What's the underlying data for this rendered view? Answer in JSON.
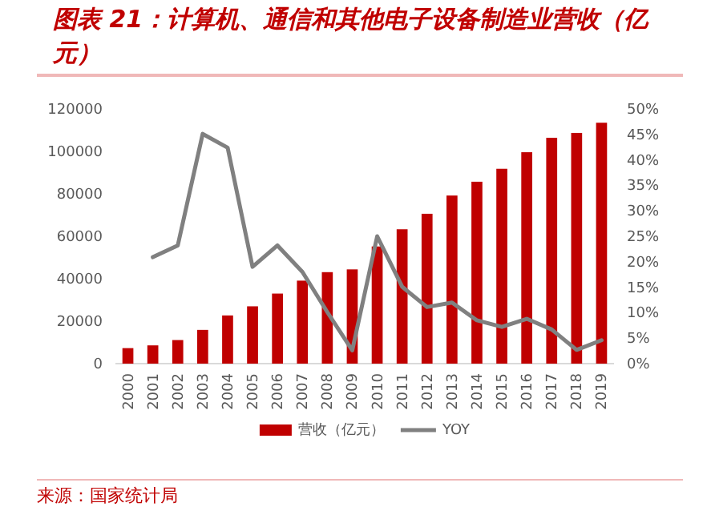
{
  "chart_data": {
    "type": "bar",
    "title": "图表 21：计算机、通信和其他电子设备制造业营收（亿元）",
    "categories": [
      "2000",
      "2001",
      "2002",
      "2003",
      "2004",
      "2005",
      "2006",
      "2007",
      "2008",
      "2009",
      "2010",
      "2011",
      "2012",
      "2013",
      "2014",
      "2015",
      "2016",
      "2017",
      "2018",
      "2019"
    ],
    "series": [
      {
        "name": "营收（亿元）",
        "color": "#c00000",
        "values": [
          7300,
          8600,
          11100,
          15900,
          22700,
          27000,
          33000,
          39100,
          43100,
          44400,
          55200,
          63300,
          70600,
          79200,
          85700,
          91800,
          99600,
          106400,
          108700,
          113500
        ]
      },
      {
        "name": "YOY",
        "type": "line",
        "axis": "y2",
        "color": "#808080",
        "values": [
          null,
          20.9,
          23.2,
          45.1,
          42.4,
          19.0,
          23.2,
          18.0,
          10.1,
          2.6,
          25.0,
          15.1,
          11.1,
          12.0,
          8.5,
          7.2,
          8.8,
          6.7,
          2.7,
          4.6
        ]
      }
    ],
    "ylim": [
      0,
      120000
    ],
    "yticks": [
      0,
      20000,
      40000,
      60000,
      80000,
      100000,
      120000
    ],
    "y2lim": [
      0,
      50
    ],
    "y2ticks": [
      {
        "value": 0,
        "label": "0%"
      },
      {
        "value": 5,
        "label": "5%"
      },
      {
        "value": 10,
        "label": "10%"
      },
      {
        "value": 15,
        "label": "15%"
      },
      {
        "value": 20,
        "label": "20%"
      },
      {
        "value": 25,
        "label": "25%"
      },
      {
        "value": 30,
        "label": "30%"
      },
      {
        "value": 35,
        "label": "35%"
      },
      {
        "value": 40,
        "label": "40%"
      },
      {
        "value": 45,
        "label": "45%"
      },
      {
        "value": 50,
        "label": "50%"
      }
    ],
    "legend": "bottom",
    "annotations": [
      "来源：国家统计局"
    ]
  }
}
